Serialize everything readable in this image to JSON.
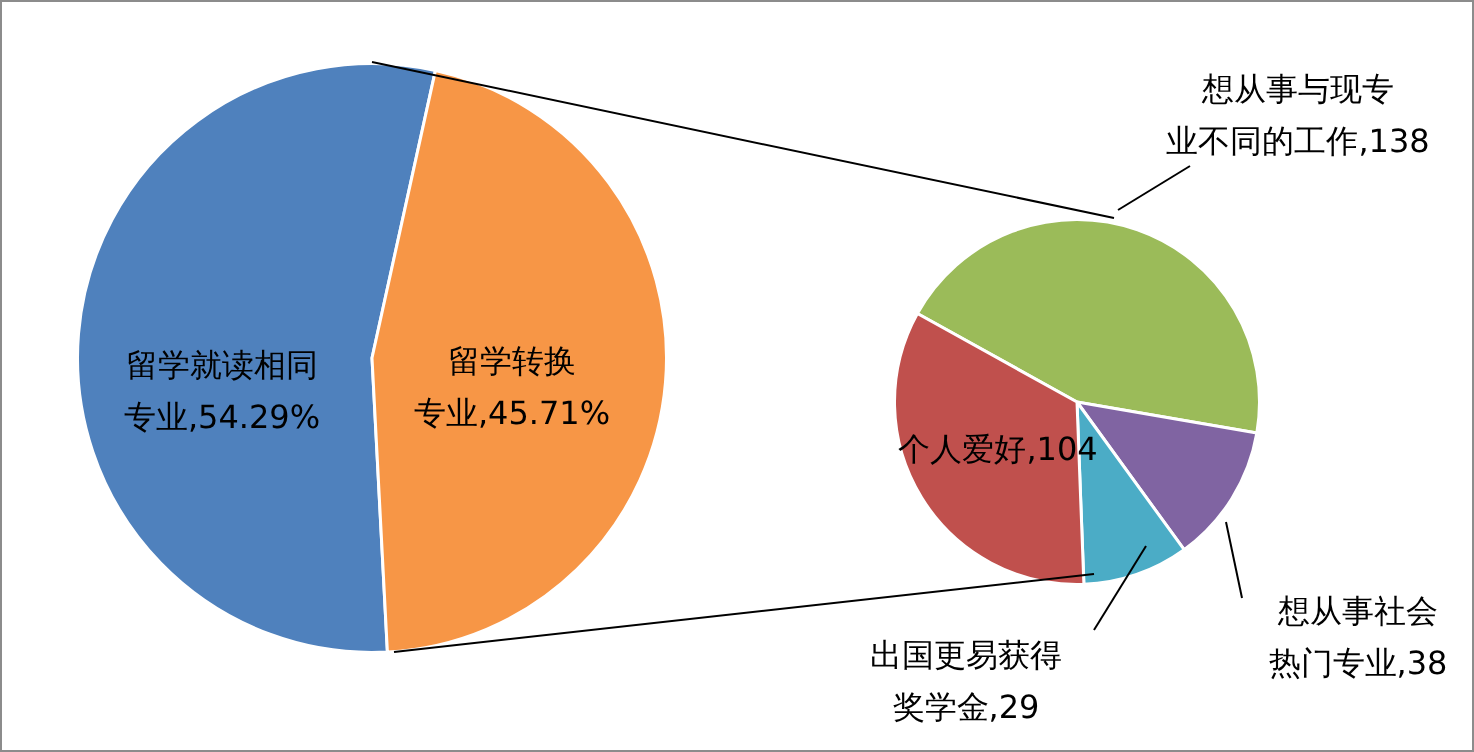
{
  "chart_data": [
    {
      "type": "pie",
      "categories": [
        "留学就读相同专业",
        "留学转换专业"
      ],
      "values": [
        54.29,
        45.71
      ],
      "colors": [
        "#4f81bd",
        "#f79646"
      ],
      "value_labels": [
        "54.29%",
        "45.71%"
      ]
    },
    {
      "type": "pie",
      "categories": [
        "想从事与现专业不同的工作",
        "想从事社会热门专业",
        "出国更易获得奖学金",
        "个人爱好"
      ],
      "values": [
        138,
        38,
        29,
        104
      ],
      "colors": [
        "#9bbb59",
        "#8064a2",
        "#4bacc6",
        "#c0504d"
      ],
      "value_labels": [
        "138",
        "38",
        "29",
        "104"
      ]
    }
  ]
}
